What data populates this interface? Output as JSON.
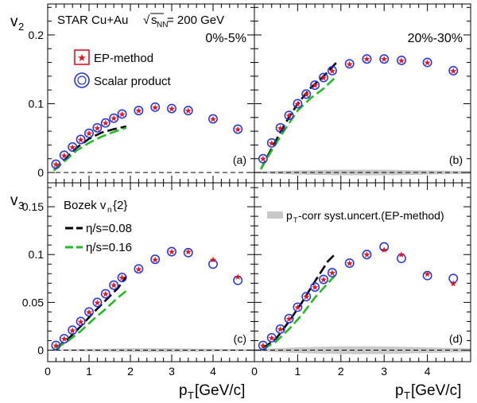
{
  "figure": {
    "collision_prefix": "STAR Cu+Au ",
    "collision_sqrt": "s",
    "collision_sub": "NN",
    "collision_suffix": " = 200 GeV",
    "legend_ep": "EP-method",
    "legend_sp": "Scalar product",
    "bozek_title": "Bozek v",
    "bozek_sub": "n",
    "bozek_rest": "{2}",
    "eta_008": "η/s=0.08",
    "eta_016": "η/s=0.16",
    "syst_p": "p",
    "syst_sub": "T",
    "syst_rest": "-corr syst.uncert.(EP-method)",
    "colors": {
      "ep": "#e8101a",
      "sp": "#2233dd",
      "eta008": "#000000",
      "eta016": "#22bb22",
      "syst": "#c8c8c8"
    }
  },
  "chart_data": [
    {
      "type": "scatter",
      "panel_label": "(a)",
      "centrality": "0%-5%",
      "ylabel": "v",
      "ylabel_sub": "2",
      "xlabel": "",
      "xlabel_sub": "",
      "xlabel_unit": "",
      "xlim": [
        0,
        5
      ],
      "ylim": [
        -0.015,
        0.245
      ],
      "yticks": [
        0,
        0.1,
        0.2
      ],
      "ytick_labels": [
        "0",
        "0.1",
        "0.2"
      ],
      "xticks": [],
      "xtick_labels": [],
      "series": [
        {
          "name": "EP-method",
          "x": [
            0.2,
            0.4,
            0.6,
            0.8,
            1.0,
            1.2,
            1.4,
            1.6,
            1.8,
            2.2,
            2.6,
            3.0,
            3.4,
            4.0,
            4.6
          ],
          "y": [
            0.012,
            0.025,
            0.037,
            0.048,
            0.057,
            0.065,
            0.072,
            0.079,
            0.085,
            0.09,
            0.095,
            0.093,
            0.09,
            0.078,
            0.063
          ]
        },
        {
          "name": "Scalar product",
          "x": [
            0.2,
            0.4,
            0.6,
            0.8,
            1.0,
            1.2,
            1.4,
            1.6,
            1.8,
            2.2,
            2.6,
            3.0,
            3.4,
            4.0,
            4.6
          ],
          "y": [
            0.012,
            0.025,
            0.037,
            0.048,
            0.057,
            0.065,
            0.072,
            0.079,
            0.085,
            0.09,
            0.095,
            0.093,
            0.09,
            0.078,
            0.063
          ]
        },
        {
          "name": "η/s=0.08",
          "x": [
            0.15,
            0.4,
            0.7,
            1.0,
            1.3,
            1.6,
            1.9
          ],
          "y": [
            0.003,
            0.018,
            0.036,
            0.049,
            0.058,
            0.063,
            0.067
          ]
        },
        {
          "name": "η/s=0.16",
          "x": [
            0.15,
            0.4,
            0.7,
            1.0,
            1.3,
            1.6,
            1.9
          ],
          "y": [
            0.003,
            0.016,
            0.032,
            0.043,
            0.052,
            0.059,
            0.065
          ]
        }
      ],
      "syst_band": null
    },
    {
      "type": "scatter",
      "panel_label": "(b)",
      "centrality": "20%-30%",
      "ylabel": "",
      "ylabel_sub": "",
      "xlabel": "",
      "xlabel_sub": "",
      "xlabel_unit": "",
      "xlim": [
        0,
        5
      ],
      "ylim": [
        -0.015,
        0.245
      ],
      "yticks": [],
      "ytick_labels": [],
      "xticks": [],
      "xtick_labels": [],
      "series": [
        {
          "name": "EP-method",
          "x": [
            0.2,
            0.4,
            0.6,
            0.8,
            1.0,
            1.2,
            1.4,
            1.6,
            1.8,
            2.2,
            2.6,
            3.0,
            3.4,
            4.0,
            4.6
          ],
          "y": [
            0.02,
            0.043,
            0.065,
            0.083,
            0.1,
            0.114,
            0.127,
            0.138,
            0.148,
            0.158,
            0.165,
            0.165,
            0.163,
            0.16,
            0.148
          ]
        },
        {
          "name": "Scalar product",
          "x": [
            0.2,
            0.4,
            0.6,
            0.8,
            1.0,
            1.2,
            1.4,
            1.6,
            1.8,
            2.2,
            2.6,
            3.0,
            3.4,
            4.0,
            4.6
          ],
          "y": [
            0.02,
            0.043,
            0.065,
            0.083,
            0.1,
            0.114,
            0.127,
            0.138,
            0.148,
            0.158,
            0.165,
            0.165,
            0.163,
            0.16,
            0.148
          ]
        },
        {
          "name": "η/s=0.08",
          "x": [
            0.15,
            0.4,
            0.7,
            1.0,
            1.3,
            1.6,
            1.9
          ],
          "y": [
            0.005,
            0.035,
            0.07,
            0.1,
            0.123,
            0.14,
            0.16
          ]
        },
        {
          "name": "η/s=0.16",
          "x": [
            0.15,
            0.4,
            0.7,
            1.0,
            1.3,
            1.6,
            1.9
          ],
          "y": [
            0.005,
            0.032,
            0.062,
            0.09,
            0.108,
            0.122,
            0.14
          ]
        }
      ],
      "syst_band": {
        "x": [
          0,
          0.5,
          1.0,
          2.0,
          3.0,
          4.0,
          5.0
        ],
        "half_width": [
          0.001,
          0.002,
          0.003,
          0.004,
          0.004,
          0.003,
          0.002
        ]
      }
    },
    {
      "type": "scatter",
      "panel_label": "(c)",
      "centrality": "",
      "ylabel": "v",
      "ylabel_sub": "3",
      "xlabel": "p",
      "xlabel_sub": "T",
      "xlabel_unit": " [GeV/c]",
      "xlim": [
        0,
        5
      ],
      "ylim": [
        -0.012,
        0.175
      ],
      "yticks": [
        0,
        0.05,
        0.1,
        0.15
      ],
      "ytick_labels": [
        "0",
        "0.05",
        "0.1",
        "0.15"
      ],
      "xticks": [
        0,
        1,
        2,
        3,
        4
      ],
      "xtick_labels": [
        "0",
        "1",
        "2",
        "3",
        "4"
      ],
      "series": [
        {
          "name": "EP-method",
          "x": [
            0.2,
            0.4,
            0.6,
            0.8,
            1.0,
            1.2,
            1.4,
            1.6,
            1.8,
            2.2,
            2.6,
            3.0,
            3.4,
            4.0,
            4.6
          ],
          "y": [
            0.005,
            0.012,
            0.021,
            0.03,
            0.04,
            0.05,
            0.059,
            0.068,
            0.076,
            0.085,
            0.095,
            0.103,
            0.103,
            0.095,
            0.077
          ]
        },
        {
          "name": "Scalar product",
          "x": [
            0.2,
            0.4,
            0.6,
            0.8,
            1.0,
            1.2,
            1.4,
            1.6,
            1.8,
            2.2,
            2.6,
            3.0,
            3.4,
            4.0,
            4.6
          ],
          "y": [
            0.005,
            0.012,
            0.021,
            0.03,
            0.04,
            0.05,
            0.059,
            0.068,
            0.076,
            0.085,
            0.095,
            0.103,
            0.102,
            0.09,
            0.073
          ]
        },
        {
          "name": "η/s=0.08",
          "x": [
            0.2,
            0.5,
            0.8,
            1.1,
            1.4,
            1.7,
            1.9
          ],
          "y": [
            0.002,
            0.012,
            0.025,
            0.039,
            0.052,
            0.065,
            0.077
          ]
        },
        {
          "name": "η/s=0.16",
          "x": [
            0.2,
            0.5,
            0.8,
            1.1,
            1.4,
            1.7,
            1.9
          ],
          "y": [
            0.002,
            0.01,
            0.02,
            0.032,
            0.043,
            0.055,
            0.062
          ]
        }
      ],
      "syst_band": {
        "x": [
          0,
          0.5,
          1.0,
          2.0,
          3.0,
          4.0,
          5.0
        ],
        "half_width": [
          0.0005,
          0.001,
          0.0015,
          0.002,
          0.002,
          0.0015,
          0.001
        ]
      }
    },
    {
      "type": "scatter",
      "panel_label": "(d)",
      "centrality": "",
      "ylabel": "",
      "ylabel_sub": "",
      "xlabel": "p",
      "xlabel_sub": "T",
      "xlabel_unit": " [GeV/c]",
      "xlim": [
        0,
        5
      ],
      "ylim": [
        -0.012,
        0.175
      ],
      "yticks": [],
      "ytick_labels": [],
      "xticks": [
        0,
        1,
        2,
        3,
        4
      ],
      "xtick_labels": [
        "0",
        "1",
        "2",
        "3",
        "4"
      ],
      "series": [
        {
          "name": "EP-method",
          "x": [
            0.2,
            0.4,
            0.6,
            0.8,
            1.0,
            1.2,
            1.4,
            1.6,
            1.8,
            2.2,
            2.6,
            3.0,
            3.4,
            4.0,
            4.6
          ],
          "y": [
            0.005,
            0.013,
            0.022,
            0.033,
            0.045,
            0.056,
            0.066,
            0.074,
            0.081,
            0.091,
            0.1,
            0.105,
            0.1,
            0.08,
            0.07
          ]
        },
        {
          "name": "Scalar product",
          "x": [
            0.2,
            0.4,
            0.6,
            0.8,
            1.0,
            1.2,
            1.4,
            1.6,
            1.8,
            2.2,
            2.6,
            3.0,
            3.4,
            4.0,
            4.6
          ],
          "y": [
            0.005,
            0.013,
            0.022,
            0.033,
            0.045,
            0.056,
            0.066,
            0.074,
            0.081,
            0.091,
            0.1,
            0.108,
            0.096,
            0.078,
            0.075
          ]
        },
        {
          "name": "η/s=0.08",
          "x": [
            0.2,
            0.5,
            0.8,
            1.1,
            1.4,
            1.7,
            1.9
          ],
          "y": [
            0.002,
            0.012,
            0.03,
            0.05,
            0.072,
            0.093,
            0.102
          ]
        },
        {
          "name": "η/s=0.16",
          "x": [
            0.2,
            0.5,
            0.8,
            1.1,
            1.4,
            1.7,
            1.9
          ],
          "y": [
            0.001,
            0.009,
            0.022,
            0.037,
            0.055,
            0.07,
            0.08
          ]
        }
      ],
      "syst_band": {
        "x": [
          0,
          0.5,
          1.0,
          2.0,
          3.0,
          4.0,
          5.0
        ],
        "half_width": [
          0.001,
          0.002,
          0.003,
          0.004,
          0.004,
          0.003,
          0.002
        ]
      }
    }
  ]
}
